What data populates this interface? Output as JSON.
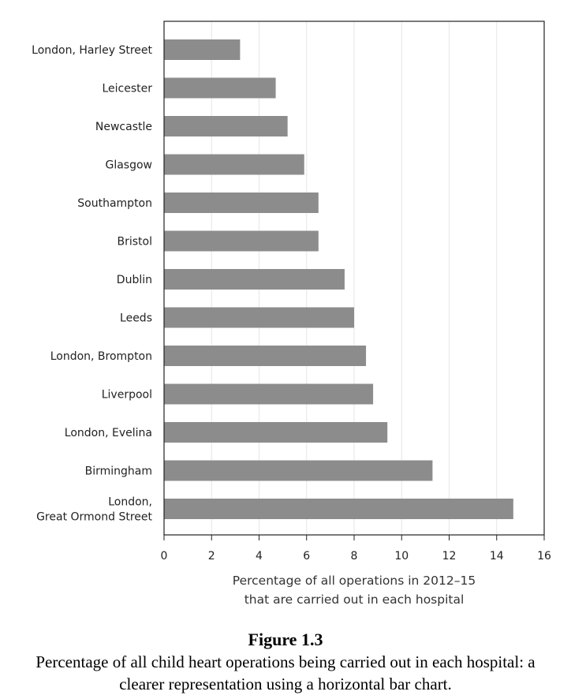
{
  "chart_data": {
    "type": "bar",
    "orientation": "horizontal",
    "categories": [
      [
        "London, Harley Street"
      ],
      [
        "Leicester"
      ],
      [
        "Newcastle"
      ],
      [
        "Glasgow"
      ],
      [
        "Southampton"
      ],
      [
        "Bristol"
      ],
      [
        "Dublin"
      ],
      [
        "Leeds"
      ],
      [
        "London, Brompton"
      ],
      [
        "Liverpool"
      ],
      [
        "London, Evelina"
      ],
      [
        "Birmingham"
      ],
      [
        "London,",
        "Great Ormond Street"
      ]
    ],
    "values": [
      3.2,
      4.7,
      5.2,
      5.9,
      6.5,
      6.5,
      7.6,
      8.0,
      8.5,
      8.8,
      9.4,
      11.3,
      14.7
    ],
    "xlim": [
      0,
      16
    ],
    "xticks": [
      "0",
      "2",
      "4",
      "6",
      "8",
      "10",
      "12",
      "14",
      "16"
    ],
    "xlabel": [
      "Percentage of all operations in 2012–15",
      "that are carried out in each hospital"
    ],
    "grid": "vertical",
    "bar_color": "#8c8c8c"
  },
  "caption": {
    "number": "Figure 1.3",
    "text": "Percentage of all child heart operations being carried out in each hospital: a clearer representation using a horizontal bar chart."
  }
}
